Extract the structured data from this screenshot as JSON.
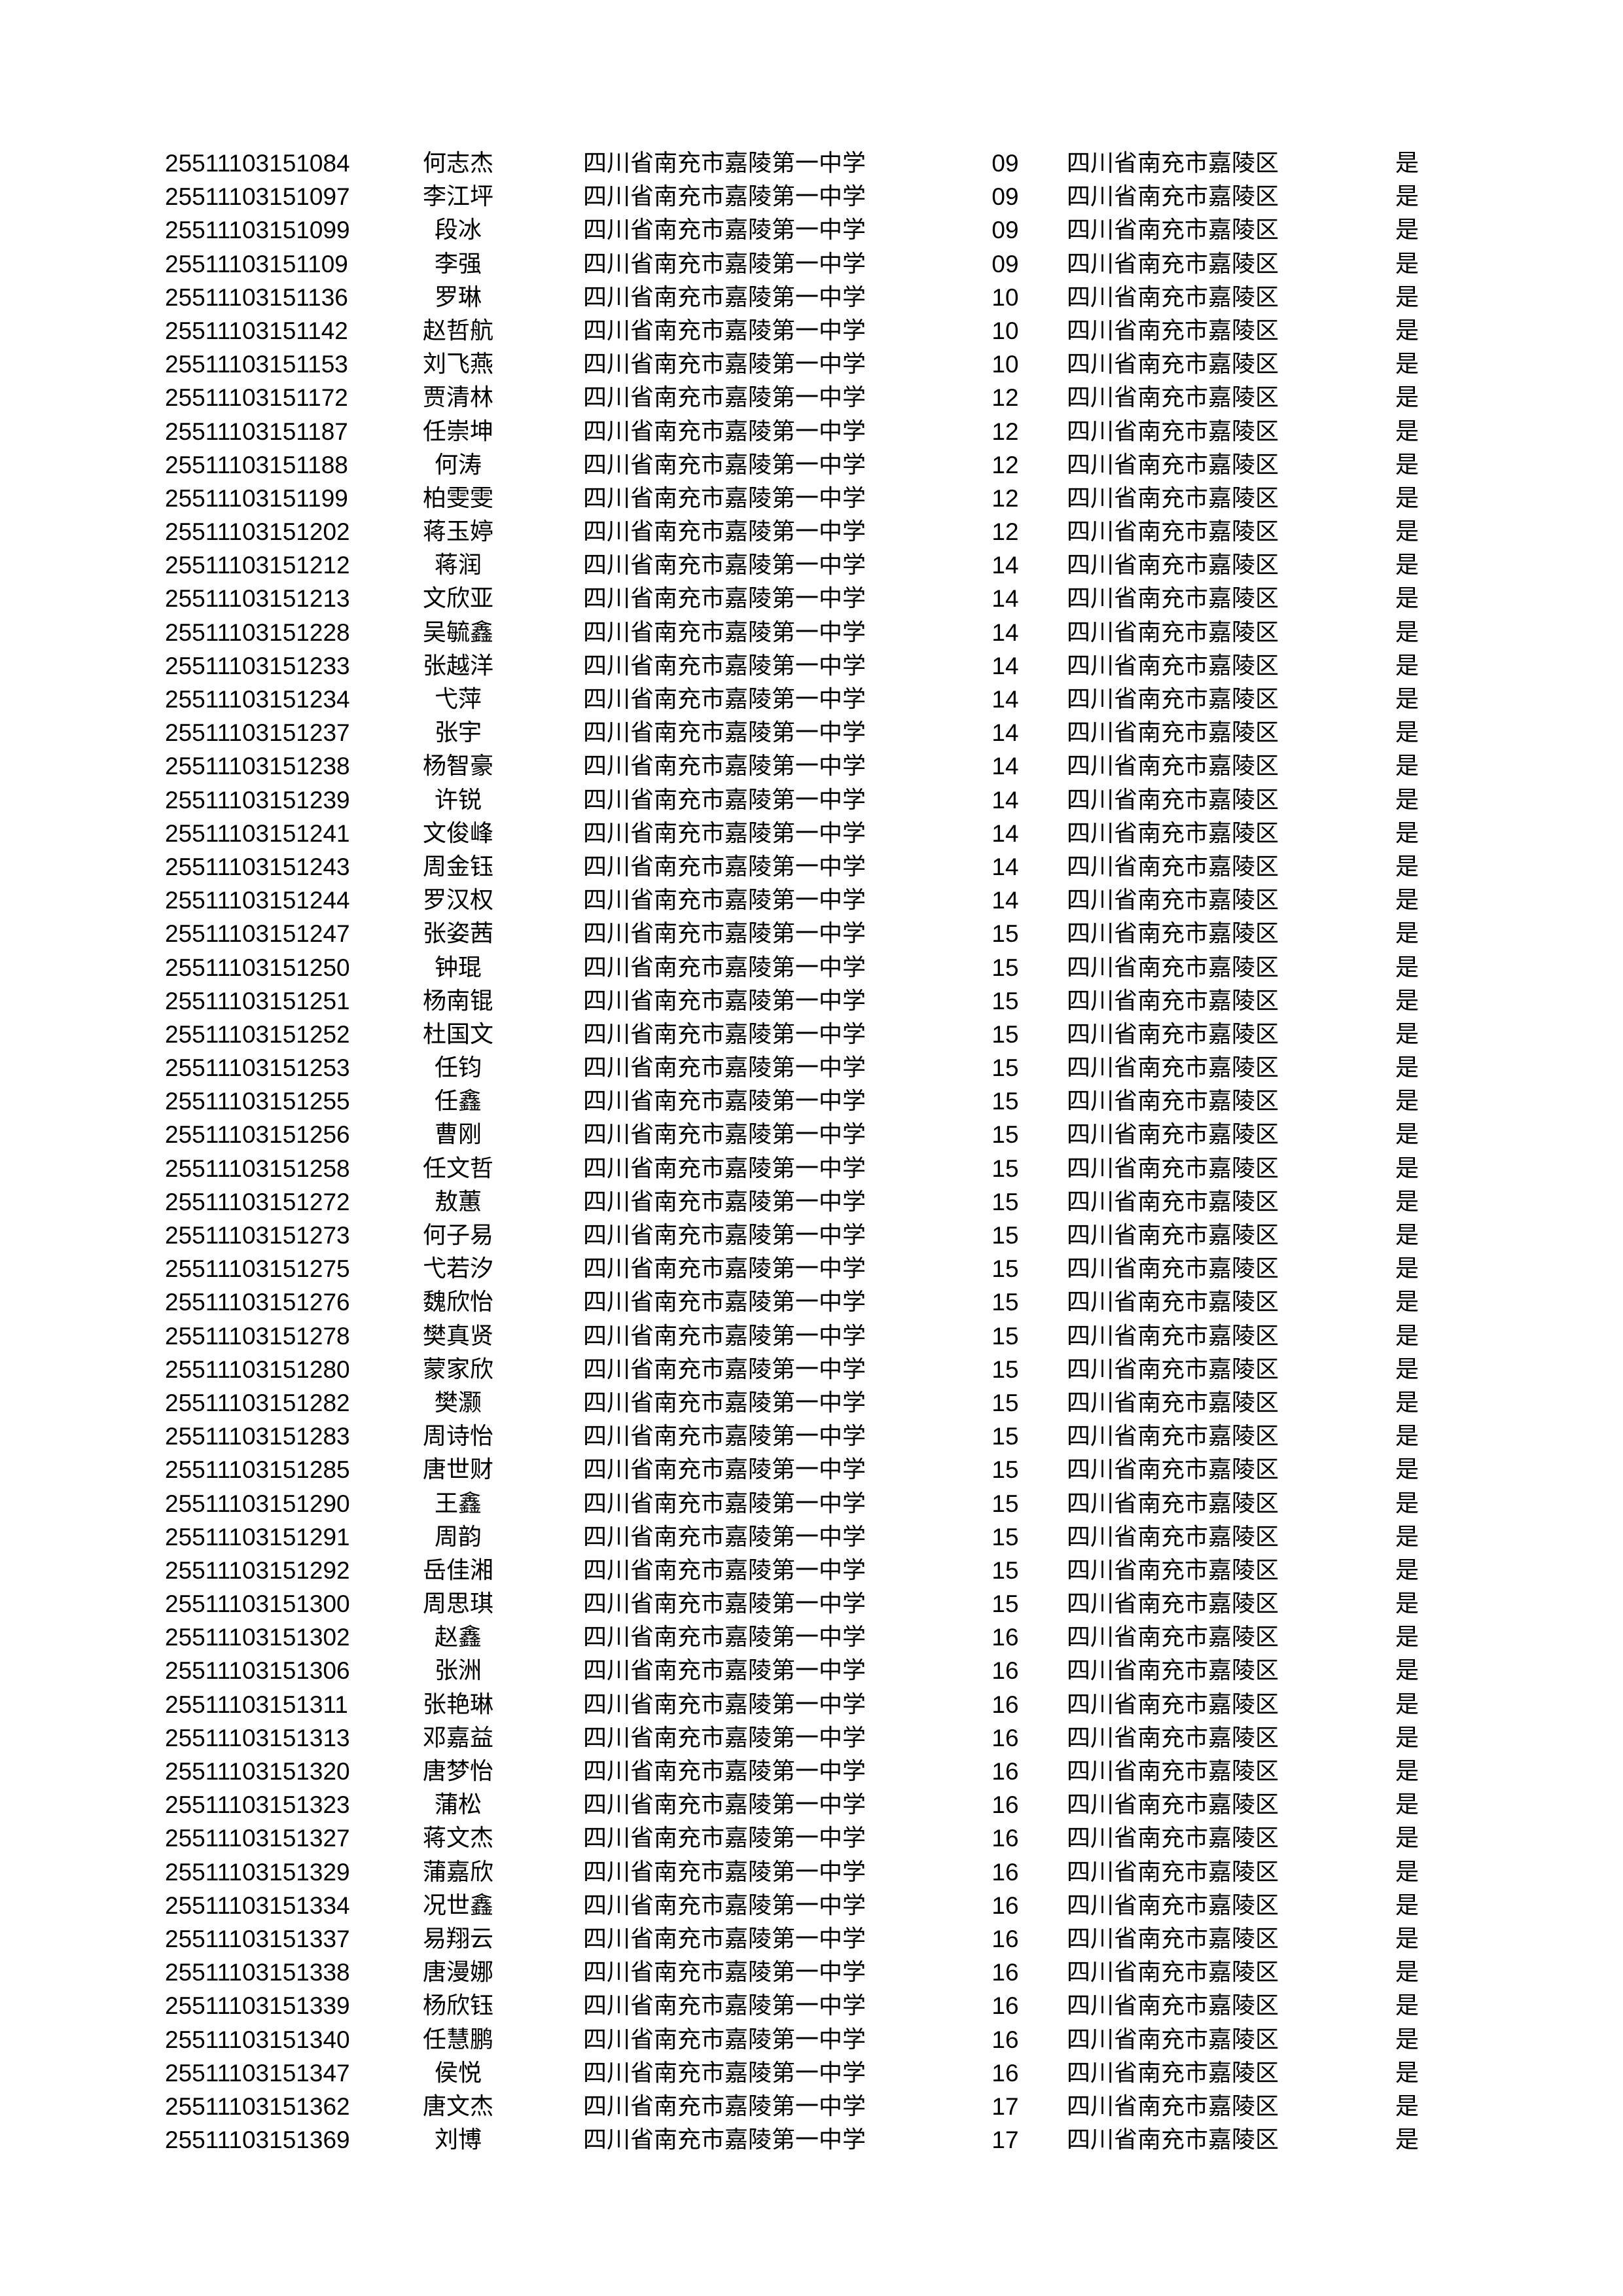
{
  "rows": [
    {
      "id": "25511103151084",
      "name": "何志杰",
      "school": "四川省南充市嘉陵第一中学",
      "class": "09",
      "district": "四川省南充市嘉陵区",
      "flag": "是"
    },
    {
      "id": "25511103151097",
      "name": "李江坪",
      "school": "四川省南充市嘉陵第一中学",
      "class": "09",
      "district": "四川省南充市嘉陵区",
      "flag": "是"
    },
    {
      "id": "25511103151099",
      "name": "段冰",
      "school": "四川省南充市嘉陵第一中学",
      "class": "09",
      "district": "四川省南充市嘉陵区",
      "flag": "是"
    },
    {
      "id": "25511103151109",
      "name": "李强",
      "school": "四川省南充市嘉陵第一中学",
      "class": "09",
      "district": "四川省南充市嘉陵区",
      "flag": "是"
    },
    {
      "id": "25511103151136",
      "name": "罗琳",
      "school": "四川省南充市嘉陵第一中学",
      "class": "10",
      "district": "四川省南充市嘉陵区",
      "flag": "是"
    },
    {
      "id": "25511103151142",
      "name": "赵哲航",
      "school": "四川省南充市嘉陵第一中学",
      "class": "10",
      "district": "四川省南充市嘉陵区",
      "flag": "是"
    },
    {
      "id": "25511103151153",
      "name": "刘飞燕",
      "school": "四川省南充市嘉陵第一中学",
      "class": "10",
      "district": "四川省南充市嘉陵区",
      "flag": "是"
    },
    {
      "id": "25511103151172",
      "name": "贾清林",
      "school": "四川省南充市嘉陵第一中学",
      "class": "12",
      "district": "四川省南充市嘉陵区",
      "flag": "是"
    },
    {
      "id": "25511103151187",
      "name": "任崇坤",
      "school": "四川省南充市嘉陵第一中学",
      "class": "12",
      "district": "四川省南充市嘉陵区",
      "flag": "是"
    },
    {
      "id": "25511103151188",
      "name": "何涛",
      "school": "四川省南充市嘉陵第一中学",
      "class": "12",
      "district": "四川省南充市嘉陵区",
      "flag": "是"
    },
    {
      "id": "25511103151199",
      "name": "柏雯雯",
      "school": "四川省南充市嘉陵第一中学",
      "class": "12",
      "district": "四川省南充市嘉陵区",
      "flag": "是"
    },
    {
      "id": "25511103151202",
      "name": "蒋玉婷",
      "school": "四川省南充市嘉陵第一中学",
      "class": "12",
      "district": "四川省南充市嘉陵区",
      "flag": "是"
    },
    {
      "id": "25511103151212",
      "name": "蒋润",
      "school": "四川省南充市嘉陵第一中学",
      "class": "14",
      "district": "四川省南充市嘉陵区",
      "flag": "是"
    },
    {
      "id": "25511103151213",
      "name": "文欣亚",
      "school": "四川省南充市嘉陵第一中学",
      "class": "14",
      "district": "四川省南充市嘉陵区",
      "flag": "是"
    },
    {
      "id": "25511103151228",
      "name": "吴毓鑫",
      "school": "四川省南充市嘉陵第一中学",
      "class": "14",
      "district": "四川省南充市嘉陵区",
      "flag": "是"
    },
    {
      "id": "25511103151233",
      "name": "张越洋",
      "school": "四川省南充市嘉陵第一中学",
      "class": "14",
      "district": "四川省南充市嘉陵区",
      "flag": "是"
    },
    {
      "id": "25511103151234",
      "name": "弋萍",
      "school": "四川省南充市嘉陵第一中学",
      "class": "14",
      "district": "四川省南充市嘉陵区",
      "flag": "是"
    },
    {
      "id": "25511103151237",
      "name": "张宇",
      "school": "四川省南充市嘉陵第一中学",
      "class": "14",
      "district": "四川省南充市嘉陵区",
      "flag": "是"
    },
    {
      "id": "25511103151238",
      "name": "杨智豪",
      "school": "四川省南充市嘉陵第一中学",
      "class": "14",
      "district": "四川省南充市嘉陵区",
      "flag": "是"
    },
    {
      "id": "25511103151239",
      "name": "许锐",
      "school": "四川省南充市嘉陵第一中学",
      "class": "14",
      "district": "四川省南充市嘉陵区",
      "flag": "是"
    },
    {
      "id": "25511103151241",
      "name": "文俊峰",
      "school": "四川省南充市嘉陵第一中学",
      "class": "14",
      "district": "四川省南充市嘉陵区",
      "flag": "是"
    },
    {
      "id": "25511103151243",
      "name": "周金钰",
      "school": "四川省南充市嘉陵第一中学",
      "class": "14",
      "district": "四川省南充市嘉陵区",
      "flag": "是"
    },
    {
      "id": "25511103151244",
      "name": "罗汉权",
      "school": "四川省南充市嘉陵第一中学",
      "class": "14",
      "district": "四川省南充市嘉陵区",
      "flag": "是"
    },
    {
      "id": "25511103151247",
      "name": "张姿茜",
      "school": "四川省南充市嘉陵第一中学",
      "class": "15",
      "district": "四川省南充市嘉陵区",
      "flag": "是"
    },
    {
      "id": "25511103151250",
      "name": "钟琨",
      "school": "四川省南充市嘉陵第一中学",
      "class": "15",
      "district": "四川省南充市嘉陵区",
      "flag": "是"
    },
    {
      "id": "25511103151251",
      "name": "杨南锟",
      "school": "四川省南充市嘉陵第一中学",
      "class": "15",
      "district": "四川省南充市嘉陵区",
      "flag": "是"
    },
    {
      "id": "25511103151252",
      "name": "杜国文",
      "school": "四川省南充市嘉陵第一中学",
      "class": "15",
      "district": "四川省南充市嘉陵区",
      "flag": "是"
    },
    {
      "id": "25511103151253",
      "name": "任钧",
      "school": "四川省南充市嘉陵第一中学",
      "class": "15",
      "district": "四川省南充市嘉陵区",
      "flag": "是"
    },
    {
      "id": "25511103151255",
      "name": "任鑫",
      "school": "四川省南充市嘉陵第一中学",
      "class": "15",
      "district": "四川省南充市嘉陵区",
      "flag": "是"
    },
    {
      "id": "25511103151256",
      "name": "曹刚",
      "school": "四川省南充市嘉陵第一中学",
      "class": "15",
      "district": "四川省南充市嘉陵区",
      "flag": "是"
    },
    {
      "id": "25511103151258",
      "name": "任文哲",
      "school": "四川省南充市嘉陵第一中学",
      "class": "15",
      "district": "四川省南充市嘉陵区",
      "flag": "是"
    },
    {
      "id": "25511103151272",
      "name": "敖蕙",
      "school": "四川省南充市嘉陵第一中学",
      "class": "15",
      "district": "四川省南充市嘉陵区",
      "flag": "是"
    },
    {
      "id": "25511103151273",
      "name": "何子易",
      "school": "四川省南充市嘉陵第一中学",
      "class": "15",
      "district": "四川省南充市嘉陵区",
      "flag": "是"
    },
    {
      "id": "25511103151275",
      "name": "弋若汐",
      "school": "四川省南充市嘉陵第一中学",
      "class": "15",
      "district": "四川省南充市嘉陵区",
      "flag": "是"
    },
    {
      "id": "25511103151276",
      "name": "魏欣怡",
      "school": "四川省南充市嘉陵第一中学",
      "class": "15",
      "district": "四川省南充市嘉陵区",
      "flag": "是"
    },
    {
      "id": "25511103151278",
      "name": "樊真贤",
      "school": "四川省南充市嘉陵第一中学",
      "class": "15",
      "district": "四川省南充市嘉陵区",
      "flag": "是"
    },
    {
      "id": "25511103151280",
      "name": "蒙家欣",
      "school": "四川省南充市嘉陵第一中学",
      "class": "15",
      "district": "四川省南充市嘉陵区",
      "flag": "是"
    },
    {
      "id": "25511103151282",
      "name": "樊灏",
      "school": "四川省南充市嘉陵第一中学",
      "class": "15",
      "district": "四川省南充市嘉陵区",
      "flag": "是"
    },
    {
      "id": "25511103151283",
      "name": "周诗怡",
      "school": "四川省南充市嘉陵第一中学",
      "class": "15",
      "district": "四川省南充市嘉陵区",
      "flag": "是"
    },
    {
      "id": "25511103151285",
      "name": "唐世财",
      "school": "四川省南充市嘉陵第一中学",
      "class": "15",
      "district": "四川省南充市嘉陵区",
      "flag": "是"
    },
    {
      "id": "25511103151290",
      "name": "王鑫",
      "school": "四川省南充市嘉陵第一中学",
      "class": "15",
      "district": "四川省南充市嘉陵区",
      "flag": "是"
    },
    {
      "id": "25511103151291",
      "name": "周韵",
      "school": "四川省南充市嘉陵第一中学",
      "class": "15",
      "district": "四川省南充市嘉陵区",
      "flag": "是"
    },
    {
      "id": "25511103151292",
      "name": "岳佳湘",
      "school": "四川省南充市嘉陵第一中学",
      "class": "15",
      "district": "四川省南充市嘉陵区",
      "flag": "是"
    },
    {
      "id": "25511103151300",
      "name": "周思琪",
      "school": "四川省南充市嘉陵第一中学",
      "class": "15",
      "district": "四川省南充市嘉陵区",
      "flag": "是"
    },
    {
      "id": "25511103151302",
      "name": "赵鑫",
      "school": "四川省南充市嘉陵第一中学",
      "class": "16",
      "district": "四川省南充市嘉陵区",
      "flag": "是"
    },
    {
      "id": "25511103151306",
      "name": "张洲",
      "school": "四川省南充市嘉陵第一中学",
      "class": "16",
      "district": "四川省南充市嘉陵区",
      "flag": "是"
    },
    {
      "id": "25511103151311",
      "name": "张艳琳",
      "school": "四川省南充市嘉陵第一中学",
      "class": "16",
      "district": "四川省南充市嘉陵区",
      "flag": "是"
    },
    {
      "id": "25511103151313",
      "name": "邓嘉益",
      "school": "四川省南充市嘉陵第一中学",
      "class": "16",
      "district": "四川省南充市嘉陵区",
      "flag": "是"
    },
    {
      "id": "25511103151320",
      "name": "唐梦怡",
      "school": "四川省南充市嘉陵第一中学",
      "class": "16",
      "district": "四川省南充市嘉陵区",
      "flag": "是"
    },
    {
      "id": "25511103151323",
      "name": "蒲松",
      "school": "四川省南充市嘉陵第一中学",
      "class": "16",
      "district": "四川省南充市嘉陵区",
      "flag": "是"
    },
    {
      "id": "25511103151327",
      "name": "蒋文杰",
      "school": "四川省南充市嘉陵第一中学",
      "class": "16",
      "district": "四川省南充市嘉陵区",
      "flag": "是"
    },
    {
      "id": "25511103151329",
      "name": "蒲嘉欣",
      "school": "四川省南充市嘉陵第一中学",
      "class": "16",
      "district": "四川省南充市嘉陵区",
      "flag": "是"
    },
    {
      "id": "25511103151334",
      "name": "况世鑫",
      "school": "四川省南充市嘉陵第一中学",
      "class": "16",
      "district": "四川省南充市嘉陵区",
      "flag": "是"
    },
    {
      "id": "25511103151337",
      "name": "易翔云",
      "school": "四川省南充市嘉陵第一中学",
      "class": "16",
      "district": "四川省南充市嘉陵区",
      "flag": "是"
    },
    {
      "id": "25511103151338",
      "name": "唐漫娜",
      "school": "四川省南充市嘉陵第一中学",
      "class": "16",
      "district": "四川省南充市嘉陵区",
      "flag": "是"
    },
    {
      "id": "25511103151339",
      "name": "杨欣钰",
      "school": "四川省南充市嘉陵第一中学",
      "class": "16",
      "district": "四川省南充市嘉陵区",
      "flag": "是"
    },
    {
      "id": "25511103151340",
      "name": "任慧鹏",
      "school": "四川省南充市嘉陵第一中学",
      "class": "16",
      "district": "四川省南充市嘉陵区",
      "flag": "是"
    },
    {
      "id": "25511103151347",
      "name": "侯悦",
      "school": "四川省南充市嘉陵第一中学",
      "class": "16",
      "district": "四川省南充市嘉陵区",
      "flag": "是"
    },
    {
      "id": "25511103151362",
      "name": "唐文杰",
      "school": "四川省南充市嘉陵第一中学",
      "class": "17",
      "district": "四川省南充市嘉陵区",
      "flag": "是"
    },
    {
      "id": "25511103151369",
      "name": "刘博",
      "school": "四川省南充市嘉陵第一中学",
      "class": "17",
      "district": "四川省南充市嘉陵区",
      "flag": "是"
    }
  ]
}
